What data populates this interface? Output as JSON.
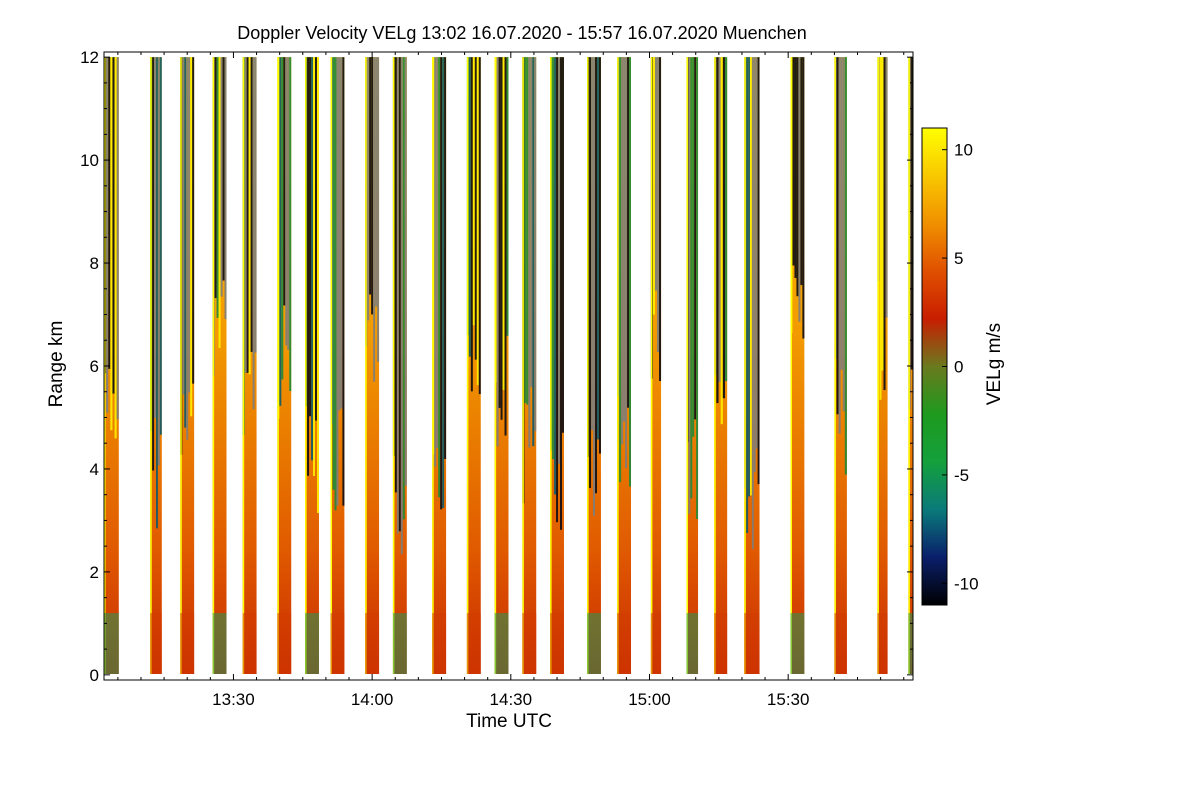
{
  "chart_data": {
    "type": "heatmap",
    "title": "Doppler Velocity VELg   13:02 16.07.2020 - 15:57 16.07.2020 Muenchen",
    "xlabel": "Time UTC",
    "ylabel": "Range km",
    "xlim_minutes_utc": [
      782,
      957
    ],
    "ylim_km": [
      -0.1,
      12.1
    ],
    "x_ticks": [
      {
        "minutes": 810,
        "label": "13:30"
      },
      {
        "minutes": 840,
        "label": "14:00"
      },
      {
        "minutes": 870,
        "label": "14:30"
      },
      {
        "minutes": 900,
        "label": "15:00"
      },
      {
        "minutes": 930,
        "label": "15:30"
      }
    ],
    "y_ticks": [
      {
        "value": 0,
        "label": "0"
      },
      {
        "value": 2,
        "label": "2"
      },
      {
        "value": 4,
        "label": "4"
      },
      {
        "value": 6,
        "label": "6"
      },
      {
        "value": 8,
        "label": "8"
      },
      {
        "value": 10,
        "label": "10"
      },
      {
        "value": 12,
        "label": "12"
      }
    ],
    "colorbar": {
      "label": "VELg m/s",
      "range": [
        -11,
        11
      ],
      "ticks": [
        {
          "value": 10,
          "label": "10"
        },
        {
          "value": 5,
          "label": "5"
        },
        {
          "value": 0,
          "label": "0"
        },
        {
          "value": -5,
          "label": "-5"
        },
        {
          "value": -10,
          "label": "-10"
        }
      ],
      "colors": [
        "#000000",
        "#0a1f6b",
        "#0a7a7a",
        "#14a03c",
        "#1e9a1e",
        "#6a7a1e",
        "#c81e00",
        "#e05000",
        "#f09000",
        "#f8c800",
        "#ffff00"
      ]
    },
    "segments": [
      {
        "start": 782.0,
        "end": 785.2,
        "top_km": 12.0
      },
      {
        "start": 792.0,
        "end": 794.5,
        "top_km": 12.0
      },
      {
        "start": 798.5,
        "end": 801.5,
        "top_km": 12.0
      },
      {
        "start": 805.5,
        "end": 808.5,
        "top_km": 12.0
      },
      {
        "start": 812.0,
        "end": 815.0,
        "top_km": 12.0
      },
      {
        "start": 819.5,
        "end": 822.5,
        "top_km": 12.0
      },
      {
        "start": 825.5,
        "end": 828.5,
        "top_km": 12.0
      },
      {
        "start": 831.0,
        "end": 834.0,
        "top_km": 12.0
      },
      {
        "start": 838.5,
        "end": 841.5,
        "top_km": 12.0
      },
      {
        "start": 844.5,
        "end": 847.5,
        "top_km": 12.0
      },
      {
        "start": 853.0,
        "end": 856.0,
        "top_km": 12.0
      },
      {
        "start": 860.5,
        "end": 863.5,
        "top_km": 12.0
      },
      {
        "start": 866.5,
        "end": 869.5,
        "top_km": 12.0
      },
      {
        "start": 872.5,
        "end": 875.5,
        "top_km": 12.0
      },
      {
        "start": 878.5,
        "end": 881.5,
        "top_km": 12.0
      },
      {
        "start": 886.5,
        "end": 889.5,
        "top_km": 12.0
      },
      {
        "start": 893.0,
        "end": 896.0,
        "top_km": 12.0
      },
      {
        "start": 900.3,
        "end": 902.5,
        "top_km": 12.0
      },
      {
        "start": 908.0,
        "end": 910.5,
        "top_km": 12.0
      },
      {
        "start": 914.0,
        "end": 916.8,
        "top_km": 12.0
      },
      {
        "start": 920.5,
        "end": 923.8,
        "top_km": 12.0
      },
      {
        "start": 930.5,
        "end": 933.5,
        "top_km": 12.0
      },
      {
        "start": 940.0,
        "end": 942.7,
        "top_km": 12.0
      },
      {
        "start": 949.3,
        "end": 951.5,
        "top_km": 12.0
      },
      {
        "start": 956.0,
        "end": 957.0,
        "top_km": 12.0
      }
    ]
  }
}
